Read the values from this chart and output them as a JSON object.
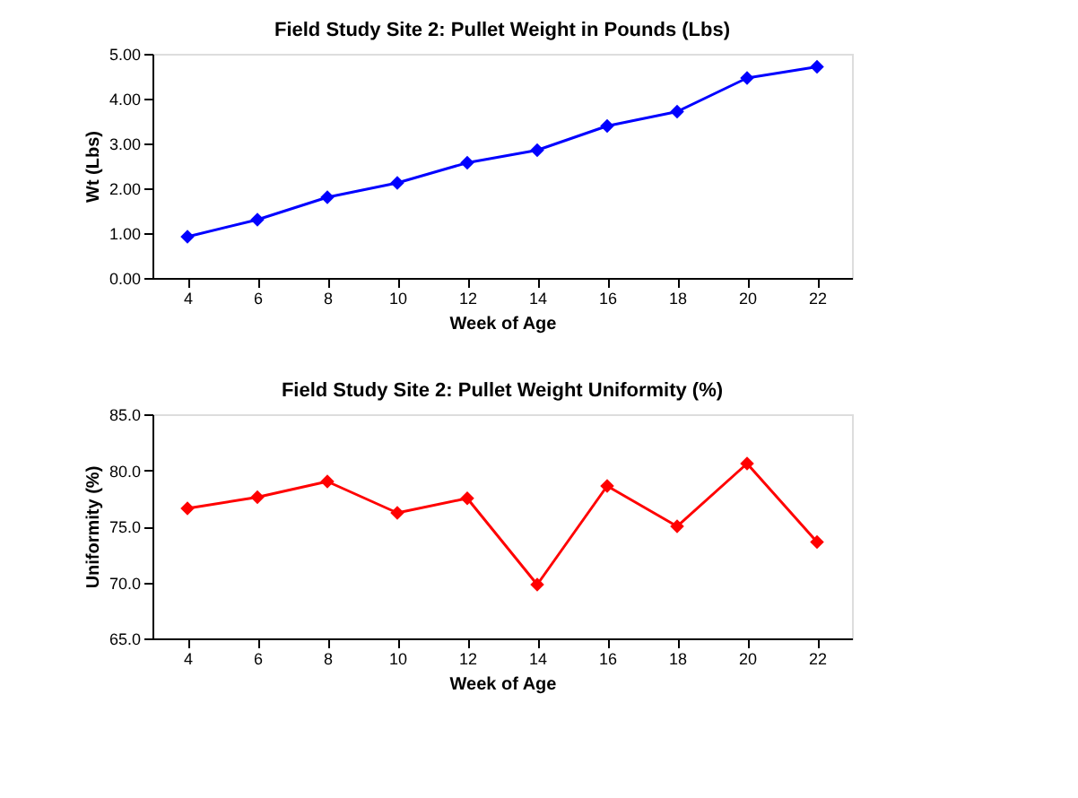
{
  "chart_data": [
    {
      "type": "line",
      "title": "Field Study Site 2: Pullet Weight in Pounds (Lbs)",
      "xlabel": "Week of Age",
      "ylabel": "Wt (Lbs)",
      "categories": [
        "4",
        "6",
        "8",
        "10",
        "12",
        "14",
        "16",
        "18",
        "20",
        "22"
      ],
      "series": [
        {
          "color": "#0000ff",
          "values": [
            0.92,
            1.3,
            1.8,
            2.12,
            2.57,
            2.85,
            3.39,
            3.71,
            4.46,
            4.71
          ]
        }
      ],
      "ylim": [
        0,
        5
      ],
      "yticks": [
        {
          "value": 0,
          "label": "0.00"
        },
        {
          "value": 1,
          "label": "1.00"
        },
        {
          "value": 2,
          "label": "2.00"
        },
        {
          "value": 3,
          "label": "3.00"
        },
        {
          "value": 4,
          "label": "4.00"
        },
        {
          "value": 5,
          "label": "5.00"
        }
      ],
      "marker": "diamond",
      "line_style": "solid",
      "grid": false
    },
    {
      "type": "line",
      "title": "Field Study Site 2: Pullet Weight Uniformity (%)",
      "xlabel": "Week of Age",
      "ylabel": "Uniformity (%)",
      "categories": [
        "4",
        "6",
        "8",
        "10",
        "12",
        "14",
        "16",
        "18",
        "20",
        "22"
      ],
      "series": [
        {
          "color": "#ff0000",
          "values": [
            76.6,
            77.6,
            79.0,
            76.2,
            77.5,
            69.8,
            78.6,
            75.0,
            80.6,
            73.6
          ]
        }
      ],
      "ylim": [
        65,
        85
      ],
      "yticks": [
        {
          "value": 65,
          "label": "65.0"
        },
        {
          "value": 70,
          "label": "70.0"
        },
        {
          "value": 75,
          "label": "75.0"
        },
        {
          "value": 80,
          "label": "80.0"
        },
        {
          "value": 85,
          "label": "85.0"
        }
      ],
      "marker": "diamond",
      "line_style": "solid",
      "grid": false
    }
  ]
}
